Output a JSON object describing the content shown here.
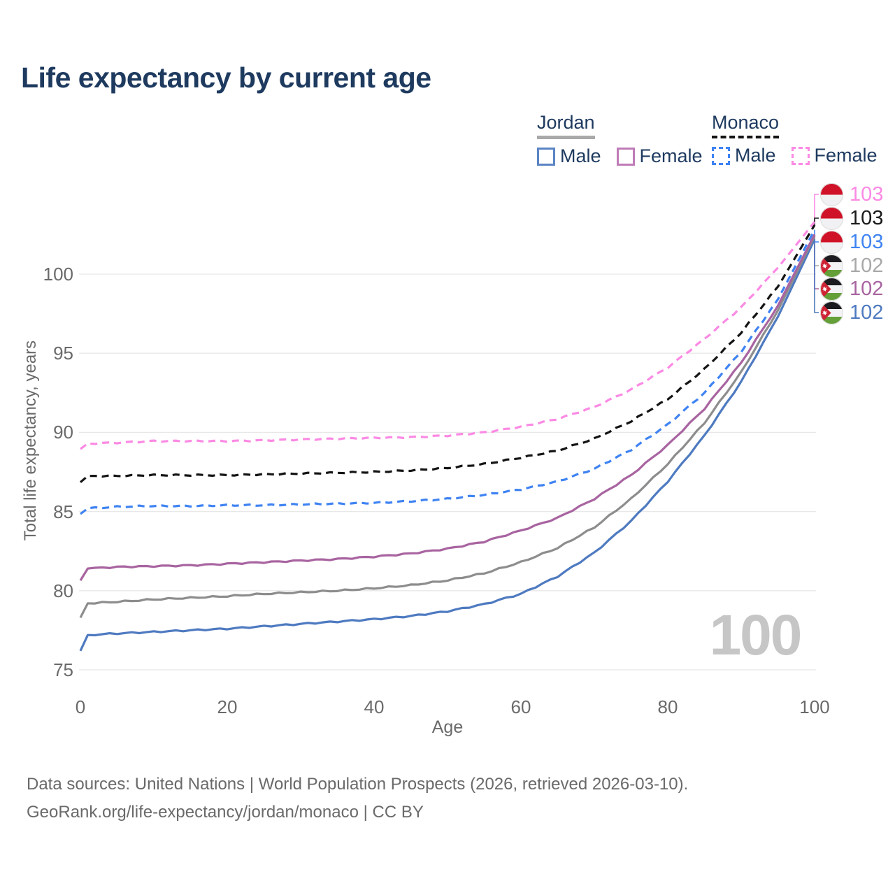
{
  "title": "Life expectancy by current age",
  "legend": {
    "jordan": {
      "label": "Jordan",
      "male": "Male",
      "female": "Female"
    },
    "monaco": {
      "label": "Monaco",
      "male": "Male",
      "female": "Female"
    }
  },
  "watermark": "100",
  "end_labels": [
    {
      "value": "103",
      "country": "monaco",
      "series_index": 5,
      "color": "#fb8ae4"
    },
    {
      "value": "103",
      "country": "monaco",
      "series_index": 4,
      "color": "#1a1a1a"
    },
    {
      "value": "103",
      "country": "monaco",
      "series_index": 3,
      "color": "#3f83f2"
    },
    {
      "value": "102",
      "country": "jordan",
      "series_index": 1,
      "color": "#a8a8a8"
    },
    {
      "value": "102",
      "country": "jordan",
      "series_index": 2,
      "color": "#a864a0"
    },
    {
      "value": "102",
      "country": "jordan",
      "series_index": 0,
      "color": "#4e7ac0"
    }
  ],
  "footer": {
    "line1": "Data sources: United Nations | World Population Prospects (2026, retrieved 2026-03-10).",
    "line2": "GeoRank.org/life-expectancy/jordan/monaco | CC BY"
  },
  "icons": {
    "monaco_flag": "circle-flag-monaco-red-white",
    "jordan_flag": "circle-flag-jordan-black-white-green-red-star"
  },
  "colors": {
    "title": "#1e3a5f",
    "axis_text": "#6a6a6a",
    "gridline": "#e8e8e8",
    "watermark": "#c6c6c6",
    "jordan_male": "#4e7ac0",
    "jordan_total": "#8d8d8d",
    "jordan_female": "#a864a0",
    "monaco_male": "#3f83f2",
    "monaco_total": "#141414",
    "monaco_female": "#fb8ae4"
  },
  "chart_data": {
    "type": "line",
    "title": "Life expectancy by current age",
    "xlabel": "Age",
    "ylabel": "Total life expectancy, years",
    "x": [
      0,
      1,
      5,
      10,
      15,
      20,
      25,
      30,
      35,
      40,
      45,
      50,
      55,
      60,
      65,
      70,
      75,
      80,
      85,
      90,
      95,
      100
    ],
    "xticks": [
      0,
      20,
      40,
      60,
      80,
      100
    ],
    "yticks": [
      75,
      80,
      85,
      90,
      95,
      100
    ],
    "xlim": [
      0,
      100
    ],
    "ylim": [
      75,
      104
    ],
    "grid": "horizontal",
    "legend_position": "top-right",
    "series": [
      {
        "name": "Jordan Male",
        "style": "solid",
        "color": "#4e7ac0",
        "values": [
          76.2,
          77.2,
          77.3,
          77.4,
          77.5,
          77.6,
          77.75,
          77.9,
          78.05,
          78.2,
          78.4,
          78.7,
          79.15,
          79.8,
          80.9,
          82.4,
          84.4,
          86.9,
          89.8,
          93.2,
          97.3,
          102.2
        ]
      },
      {
        "name": "Jordan Both sexes",
        "style": "solid",
        "color": "#8d8d8d",
        "values": [
          78.3,
          79.2,
          79.3,
          79.45,
          79.55,
          79.65,
          79.8,
          79.9,
          80.0,
          80.15,
          80.35,
          80.65,
          81.1,
          81.8,
          82.7,
          84.0,
          85.8,
          88.0,
          90.6,
          93.8,
          97.7,
          102.4
        ]
      },
      {
        "name": "Jordan Female",
        "style": "solid",
        "color": "#a864a0",
        "values": [
          80.65,
          81.4,
          81.5,
          81.55,
          81.6,
          81.7,
          81.8,
          81.9,
          82.0,
          82.15,
          82.35,
          82.65,
          83.1,
          83.8,
          84.6,
          85.8,
          87.3,
          89.2,
          91.5,
          94.4,
          98.0,
          102.5
        ]
      },
      {
        "name": "Monaco Male",
        "style": "dashed",
        "color": "#3f83f2",
        "values": [
          84.85,
          85.2,
          85.3,
          85.35,
          85.35,
          85.4,
          85.4,
          85.45,
          85.5,
          85.55,
          85.65,
          85.8,
          86.05,
          86.4,
          86.9,
          87.7,
          88.9,
          90.5,
          92.5,
          95.1,
          98.4,
          102.8
        ]
      },
      {
        "name": "Monaco Both sexes",
        "style": "dashed",
        "color": "#141414",
        "values": [
          86.85,
          87.25,
          87.25,
          87.3,
          87.3,
          87.3,
          87.35,
          87.4,
          87.45,
          87.5,
          87.6,
          87.75,
          88.0,
          88.4,
          88.85,
          89.6,
          90.7,
          92.1,
          94.0,
          96.3,
          99.2,
          103.1
        ]
      },
      {
        "name": "Monaco Female",
        "style": "dashed",
        "color": "#fb8ae4",
        "values": [
          88.95,
          89.3,
          89.35,
          89.45,
          89.45,
          89.45,
          89.5,
          89.55,
          89.6,
          89.65,
          89.7,
          89.8,
          90.0,
          90.35,
          90.85,
          91.6,
          92.7,
          94.1,
          95.9,
          97.9,
          100.4,
          103.3
        ]
      }
    ]
  }
}
